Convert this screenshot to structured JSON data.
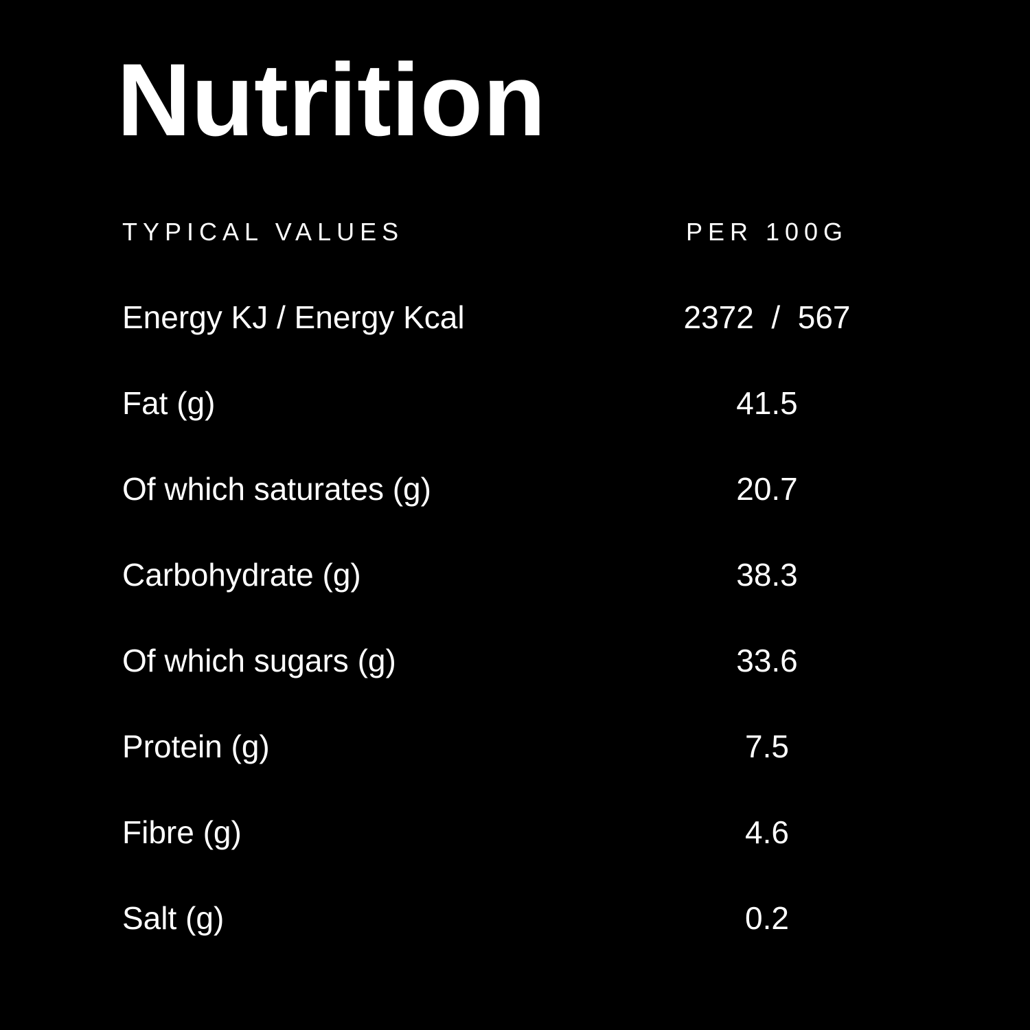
{
  "colors": {
    "background": "#000000",
    "text": "#ffffff"
  },
  "title": "Nutrition",
  "table": {
    "headers": {
      "left": "TYPICAL VALUES",
      "right": "PER 100G"
    },
    "rows": [
      {
        "label": "Energy KJ / Energy Kcal",
        "value": "2372  /  567"
      },
      {
        "label": "Fat (g)",
        "value": "41.5"
      },
      {
        "label": "Of which saturates (g)",
        "value": "20.7"
      },
      {
        "label": "Carbohydrate (g)",
        "value": "38.3"
      },
      {
        "label": "Of which sugars (g)",
        "value": "33.6"
      },
      {
        "label": "Protein (g)",
        "value": "7.5"
      },
      {
        "label": "Fibre (g)",
        "value": "4.6"
      },
      {
        "label": "Salt (g)",
        "value": "0.2"
      }
    ]
  }
}
